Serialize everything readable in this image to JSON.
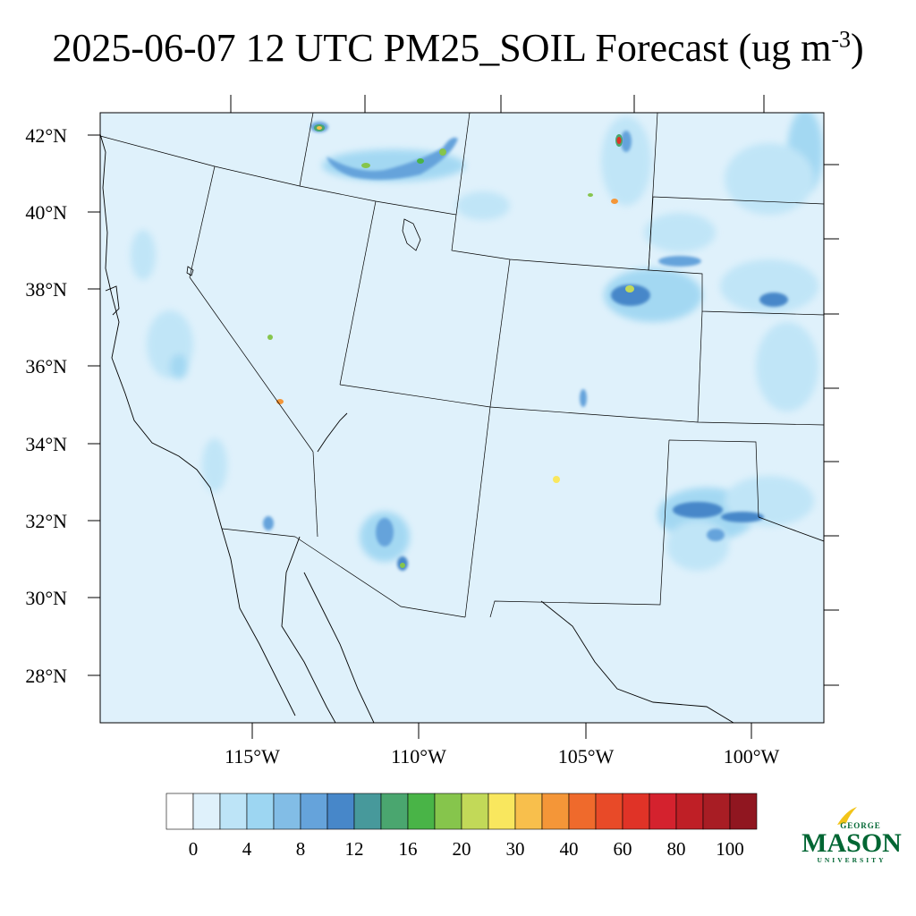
{
  "title": {
    "text": "2025-06-07 12 UTC PM25_SOIL Forecast (ug m",
    "superscript": "-3",
    "closing": ")"
  },
  "map": {
    "projection": "lambert-conformal",
    "lat_labels": [
      "42°N",
      "40°N",
      "38°N",
      "36°N",
      "34°N",
      "32°N",
      "30°N",
      "28°N"
    ],
    "lon_labels": [
      "115°W",
      "110°W",
      "105°W",
      "100°W"
    ],
    "background_fill": "#dff1fb",
    "features": [
      "coastlines",
      "state-borders",
      "country-borders"
    ],
    "notable_plumes": [
      {
        "place": "southwest Wyoming",
        "level": "high"
      },
      {
        "place": "southeast Wyoming",
        "level": "high"
      },
      {
        "place": "southern Arizona",
        "level": "moderate"
      },
      {
        "place": "Texas panhandle / Oklahoma",
        "level": "moderate"
      },
      {
        "place": "western Kansas",
        "level": "moderate"
      },
      {
        "place": "southern Nevada",
        "level": "high"
      },
      {
        "place": "central New Mexico",
        "level": "high"
      }
    ]
  },
  "colorbar": {
    "tick_labels": [
      "0",
      "4",
      "8",
      "12",
      "16",
      "20",
      "30",
      "40",
      "60",
      "80",
      "100"
    ],
    "colors": [
      "#ffffff",
      "#dff1fb",
      "#bde4f7",
      "#9dd6f2",
      "#82bde6",
      "#65a3db",
      "#4787c9",
      "#47999b",
      "#4aa66f",
      "#49b447",
      "#86c54c",
      "#c2d958",
      "#f9e75e",
      "#f8bf4c",
      "#f49638",
      "#ef6a2c",
      "#e84a28",
      "#e03327",
      "#d4222e",
      "#bf1f26",
      "#a81d24",
      "#901620"
    ]
  },
  "logo": {
    "top": "GEORGE",
    "main": "MASON",
    "bottom": "UNIVERSITY",
    "color": "#006633",
    "accent": "#f2c419"
  }
}
